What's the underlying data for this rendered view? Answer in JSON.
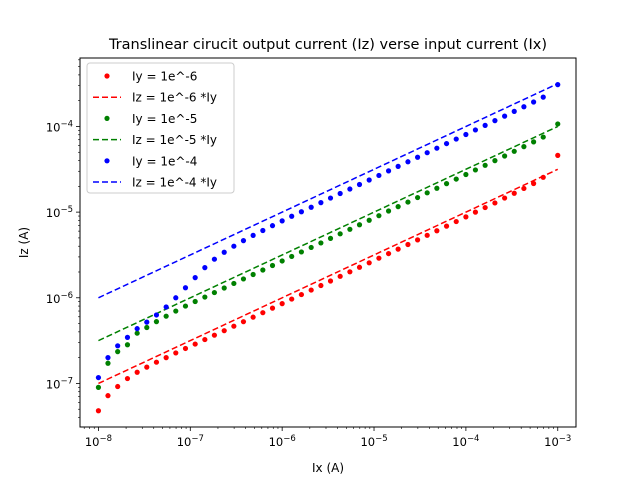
{
  "chart_data": {
    "type": "scatter",
    "title": "Translinear cirucit output current (Iz) verse input current (Ix)",
    "xlabel": "Ix (A)",
    "ylabel": "Iz (A)",
    "xscale": "log",
    "yscale": "log",
    "xlim": [
      6.3e-09,
      0.00158
    ],
    "ylim": [
      3.1e-08,
      0.00063
    ],
    "x_ticks": [
      {
        "value": 1e-08,
        "base": "10",
        "exp": "−8"
      },
      {
        "value": 1e-07,
        "base": "10",
        "exp": "−7"
      },
      {
        "value": 1e-06,
        "base": "10",
        "exp": "−6"
      },
      {
        "value": 1e-05,
        "base": "10",
        "exp": "−5"
      },
      {
        "value": 0.0001,
        "base": "10",
        "exp": "−4"
      },
      {
        "value": 0.001,
        "base": "10",
        "exp": "−3"
      }
    ],
    "y_ticks": [
      {
        "value": 1e-07,
        "base": "10",
        "exp": "−7"
      },
      {
        "value": 1e-06,
        "base": "10",
        "exp": "−6"
      },
      {
        "value": 1e-05,
        "base": "10",
        "exp": "−5"
      },
      {
        "value": 0.0001,
        "base": "10",
        "exp": "−4"
      }
    ],
    "grid": false,
    "legend_position": "top-left",
    "series": [
      {
        "name": "Iy = 1e^-6",
        "kind": "points",
        "color": "#ff0000",
        "x": [
          1e-08,
          1.27e-08,
          1.62e-08,
          2.07e-08,
          2.64e-08,
          3.36e-08,
          4.28e-08,
          5.46e-08,
          6.95e-08,
          8.86e-08,
          1.13e-07,
          1.44e-07,
          1.83e-07,
          2.34e-07,
          2.98e-07,
          3.79e-07,
          4.83e-07,
          6.16e-07,
          7.85e-07,
          1e-06,
          1.27e-06,
          1.62e-06,
          2.07e-06,
          2.64e-06,
          3.36e-06,
          4.28e-06,
          5.46e-06,
          6.95e-06,
          8.86e-06,
          1.13e-05,
          1.44e-05,
          1.83e-05,
          2.34e-05,
          2.98e-05,
          3.79e-05,
          4.83e-05,
          6.16e-05,
          7.85e-05,
          0.0001,
          0.000127,
          0.000162,
          0.000207,
          0.000264,
          0.000336,
          0.000428,
          0.000546,
          0.000695,
          0.001
        ],
        "y": [
          4.8e-08,
          7.2e-08,
          9.2e-08,
          1.14e-07,
          1.35e-07,
          1.55e-07,
          1.77e-07,
          2e-07,
          2.27e-07,
          2.56e-07,
          2.88e-07,
          3.25e-07,
          3.66e-07,
          4.13e-07,
          4.66e-07,
          5.26e-07,
          5.94e-07,
          6.7e-07,
          7.57e-07,
          8.55e-07,
          9.66e-07,
          1.09e-06,
          1.23e-06,
          1.39e-06,
          1.57e-06,
          1.78e-06,
          2.01e-06,
          2.27e-06,
          2.56e-06,
          2.9e-06,
          3.28e-06,
          3.7e-06,
          4.19e-06,
          4.74e-06,
          5.36e-06,
          6.06e-06,
          6.86e-06,
          7.76e-06,
          8.8e-06,
          1e-05,
          1.13e-05,
          1.28e-05,
          1.46e-05,
          1.66e-05,
          1.89e-05,
          2.16e-05,
          2.55e-05,
          4.6e-05
        ]
      },
      {
        "name": "Iz = 1e^-6 *Iy",
        "kind": "line",
        "color": "#ff0000",
        "x": [
          1e-08,
          0.001
        ],
        "y": [
          1e-07,
          3.16e-05
        ]
      },
      {
        "name": "Iy = 1e^-5",
        "kind": "points",
        "color": "#008000",
        "x": [
          1e-08,
          1.27e-08,
          1.62e-08,
          2.07e-08,
          2.64e-08,
          3.36e-08,
          4.28e-08,
          5.46e-08,
          6.95e-08,
          8.86e-08,
          1.13e-07,
          1.44e-07,
          1.83e-07,
          2.34e-07,
          2.98e-07,
          3.79e-07,
          4.83e-07,
          6.16e-07,
          7.85e-07,
          1e-06,
          1.27e-06,
          1.62e-06,
          2.07e-06,
          2.64e-06,
          3.36e-06,
          4.28e-06,
          5.46e-06,
          6.95e-06,
          8.86e-06,
          1.13e-05,
          1.44e-05,
          1.83e-05,
          2.34e-05,
          2.98e-05,
          3.79e-05,
          4.83e-05,
          6.16e-05,
          7.85e-05,
          0.0001,
          0.000127,
          0.000162,
          0.000207,
          0.000264,
          0.000336,
          0.000428,
          0.000546,
          0.000695,
          0.001
        ],
        "y": [
          9e-08,
          1.72e-07,
          2.35e-07,
          2.83e-07,
          3.86e-07,
          4.5e-07,
          5.27e-07,
          6.1e-07,
          7e-07,
          8e-07,
          9.05e-07,
          1.02e-06,
          1.15e-06,
          1.3e-06,
          1.47e-06,
          1.66e-06,
          1.87e-06,
          2.11e-06,
          2.38e-06,
          2.69e-06,
          3.04e-06,
          3.43e-06,
          3.87e-06,
          4.37e-06,
          4.94e-06,
          5.58e-06,
          6.3e-06,
          7.12e-06,
          8.04e-06,
          9.09e-06,
          1.03e-05,
          1.16e-05,
          1.31e-05,
          1.48e-05,
          1.68e-05,
          1.9e-05,
          2.15e-05,
          2.43e-05,
          2.75e-05,
          3.11e-05,
          3.52e-05,
          3.99e-05,
          4.52e-05,
          5.13e-05,
          5.82e-05,
          6.61e-05,
          7.52e-05,
          0.000107
        ]
      },
      {
        "name": "Iz = 1e^-5 *Iy",
        "kind": "line",
        "color": "#008000",
        "x": [
          1e-08,
          0.001
        ],
        "y": [
          3.16e-07,
          0.0001
        ]
      },
      {
        "name": "Iy = 1e^-4",
        "kind": "points",
        "color": "#0000ff",
        "x": [
          1e-08,
          1.27e-08,
          1.62e-08,
          2.07e-08,
          2.64e-08,
          3.36e-08,
          4.28e-08,
          5.46e-08,
          6.95e-08,
          8.86e-08,
          1.13e-07,
          1.44e-07,
          1.83e-07,
          2.34e-07,
          2.98e-07,
          3.79e-07,
          4.83e-07,
          6.16e-07,
          7.85e-07,
          1e-06,
          1.27e-06,
          1.62e-06,
          2.07e-06,
          2.64e-06,
          3.36e-06,
          4.28e-06,
          5.46e-06,
          6.95e-06,
          8.86e-06,
          1.13e-05,
          1.44e-05,
          1.83e-05,
          2.34e-05,
          2.98e-05,
          3.79e-05,
          4.83e-05,
          6.16e-05,
          7.85e-05,
          0.0001,
          0.000127,
          0.000162,
          0.000207,
          0.000264,
          0.000336,
          0.000428,
          0.000546,
          0.000695,
          0.001
        ],
        "y": [
          1.17e-07,
          2e-07,
          2.75e-07,
          3.45e-07,
          4.36e-07,
          5.2e-07,
          6.3e-07,
          7.8e-07,
          1e-06,
          1.31e-06,
          1.72e-06,
          2.25e-06,
          2.82e-06,
          3.4e-06,
          4e-06,
          4.65e-06,
          5.35e-06,
          6.1e-06,
          6.95e-06,
          7.9e-06,
          8.95e-06,
          1.01e-05,
          1.14e-05,
          1.29e-05,
          1.46e-05,
          1.65e-05,
          1.86e-05,
          2.1e-05,
          2.37e-05,
          2.68e-05,
          3.03e-05,
          3.42e-05,
          3.87e-05,
          4.37e-05,
          4.94e-05,
          5.58e-05,
          6.31e-05,
          7.13e-05,
          8.06e-05,
          9.11e-05,
          0.000103,
          0.000117,
          0.000132,
          0.00015,
          0.00017,
          0.000193,
          0.00022,
          0.000308
        ]
      },
      {
        "name": "Iz = 1e^-4 *Iy",
        "kind": "line",
        "color": "#0000ff",
        "x": [
          1e-08,
          0.001
        ],
        "y": [
          1e-06,
          0.000316
        ]
      }
    ]
  }
}
